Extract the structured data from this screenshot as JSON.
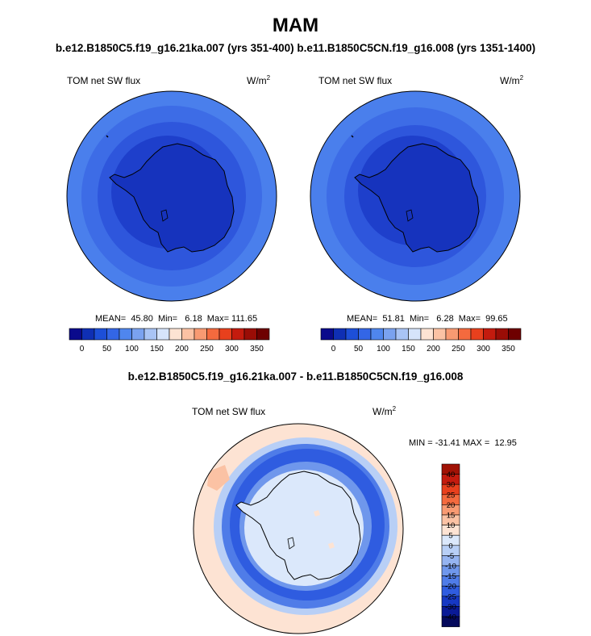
{
  "page": {
    "title": "MAM",
    "subtitle": "b.e12.B1850C5.f19_g16.21ka.007 (yrs 351-400) b.e11.B1850C5CN.f19_g16.008 (yrs 1351-1400)",
    "diff_title": "b.e12.B1850C5.f19_g16.21ka.007 - b.e11.B1850C5CN.f19_g16.008"
  },
  "panels": [
    {
      "id": "left",
      "variable": "TOM net SW flux",
      "unit_base": "W/m",
      "unit_exp": "2",
      "stats": "MEAN=  45.80  Min=   6.18  Max= 111.65"
    },
    {
      "id": "right",
      "variable": "TOM net SW flux",
      "unit_base": "W/m",
      "unit_exp": "2",
      "stats": "MEAN=  51.81  Min=   6.28  Max=  99.65"
    }
  ],
  "diff_panel": {
    "variable": "TOM net SW flux",
    "unit_base": "W/m",
    "unit_exp": "2",
    "stats": "MIN = -31.41 MAX =  12.95"
  },
  "colorbar_h": {
    "colors": [
      "#0a0a8c",
      "#0f2fb4",
      "#1d4fd8",
      "#3366e6",
      "#4f86ee",
      "#7aa2f0",
      "#a9c4f5",
      "#d6e4fb",
      "#fde3d3",
      "#fbc2a4",
      "#f89a72",
      "#f46a3e",
      "#e8401d",
      "#c41b0e",
      "#9a0d06",
      "#6e0000"
    ],
    "tick_labels": [
      "0",
      "50",
      "100",
      "150",
      "200",
      "250",
      "300",
      "350"
    ]
  },
  "colorbar_v": {
    "colors_top_to_bottom": [
      "#a11205",
      "#c41b0e",
      "#e8401d",
      "#f46a3e",
      "#f89a72",
      "#fbc2a4",
      "#fde3d3",
      "#dbe8fb",
      "#b8cff6",
      "#95b4f1",
      "#6f97ec",
      "#4f7ce8",
      "#2f5ce0",
      "#1638c4",
      "#0a1a96",
      "#050a5c"
    ],
    "tick_labels": [
      "40",
      "30",
      "25",
      "20",
      "15",
      "10",
      "5",
      "0",
      "-5",
      "-10",
      "-15",
      "-20",
      "-25",
      "-30",
      "-40"
    ]
  }
}
